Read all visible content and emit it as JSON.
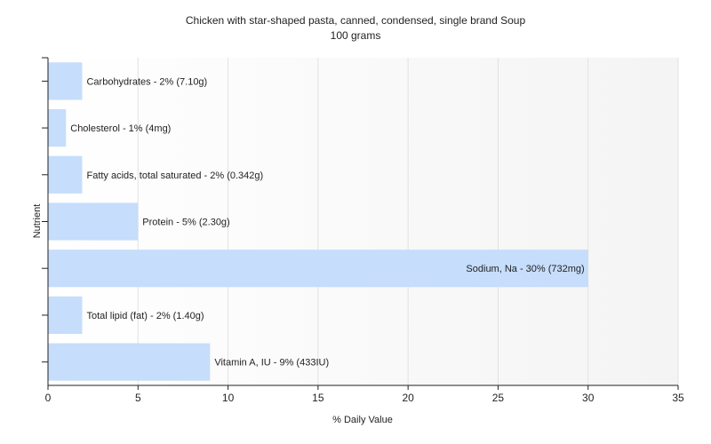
{
  "chart_data": {
    "type": "bar",
    "orientation": "horizontal",
    "title": "Chicken with star-shaped pasta, canned, condensed, single brand Soup",
    "subtitle": "100 grams",
    "xlabel": "% Daily Value",
    "ylabel": "Nutrient",
    "xlim": [
      0,
      35
    ],
    "xticks": [
      0,
      5,
      10,
      15,
      20,
      25,
      30,
      35
    ],
    "grid": "vertical",
    "categories": [
      "Carbohydrates",
      "Cholesterol",
      "Fatty acids, total saturated",
      "Protein",
      "Sodium, Na",
      "Total lipid (fat)",
      "Vitamin A, IU"
    ],
    "values": [
      1.9,
      1,
      1.9,
      5,
      30,
      1.9,
      9
    ],
    "labels": [
      "Carbohydrates - 2% (7.10g)",
      "Cholesterol - 1% (4mg)",
      "Fatty acids, total saturated - 2% (0.342g)",
      "Protein - 5% (2.30g)",
      "Sodium, Na - 30% (732mg)",
      "Total lipid (fat) - 2% (1.40g)",
      "Vitamin A, IU - 9% (433IU)"
    ],
    "colors": {
      "bar": "#c6ddfc",
      "grid": "#e2e2e2",
      "axis": "#222222",
      "plot_bg_start": "#ffffff",
      "plot_bg_end": "#f4f4f4"
    }
  }
}
